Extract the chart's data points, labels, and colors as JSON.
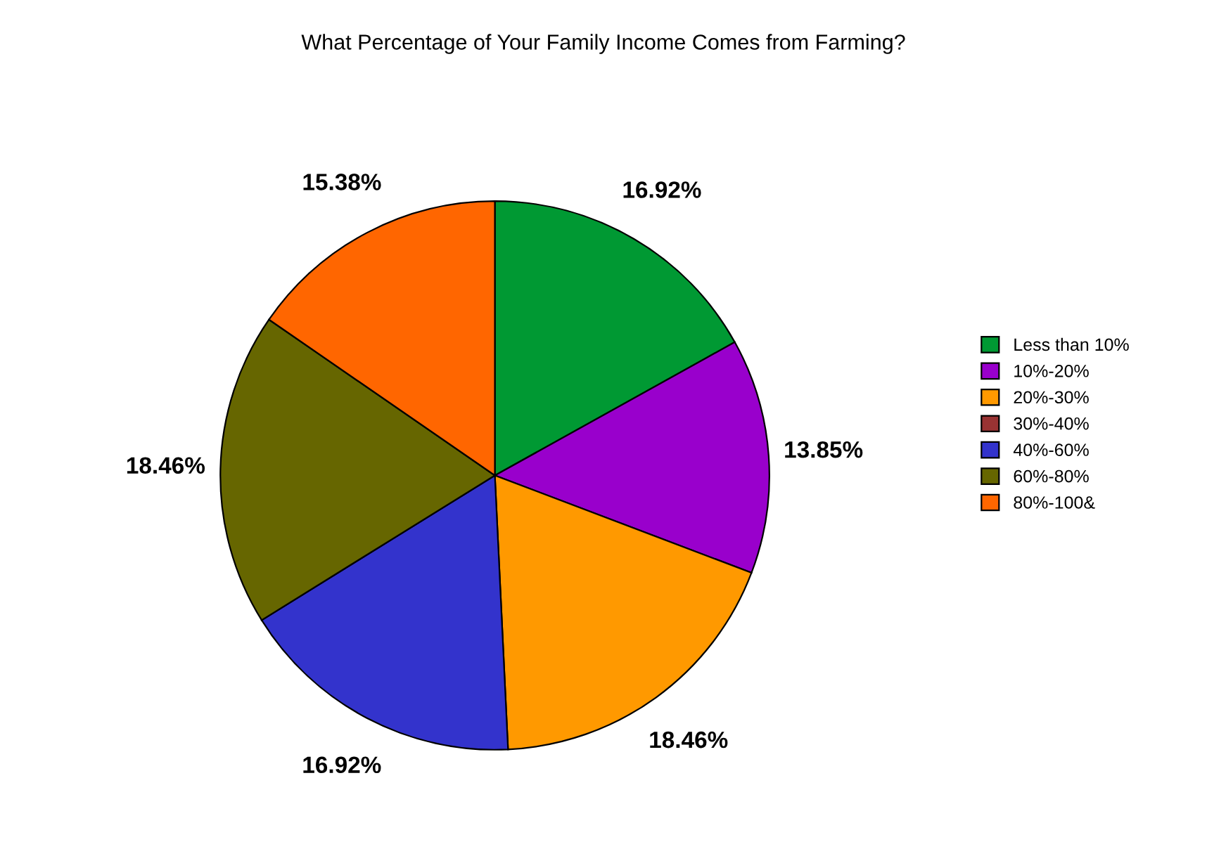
{
  "chart_data": {
    "type": "pie",
    "title": "What Percentage of Your Family Income Comes from Farming?",
    "categories": [
      "Less than 10%",
      "10%-20%",
      "20%-30%",
      "30%-40%",
      "40%-60%",
      "60%-80%",
      "80%-100&"
    ],
    "values": [
      16.92,
      13.85,
      18.46,
      0,
      16.92,
      18.46,
      15.38
    ],
    "value_labels": [
      "16.92%",
      "13.85%",
      "18.46%",
      null,
      "16.92%",
      "18.46%",
      "15.38%"
    ],
    "colors": [
      "#009933",
      "#9900cc",
      "#ff9900",
      "#993333",
      "#3333cc",
      "#666600",
      "#ff6600"
    ],
    "legend": "right"
  }
}
